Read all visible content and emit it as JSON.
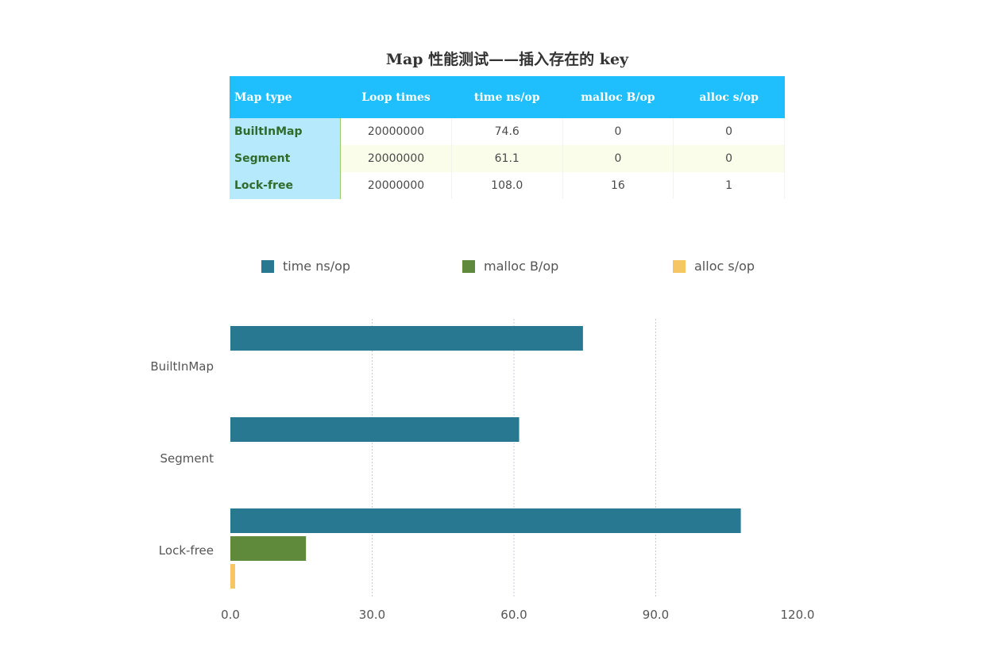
{
  "title": "Map 性能测试——插入存在的 key",
  "table": {
    "headers": [
      "Map type",
      "Loop times",
      "time ns/op",
      "malloc B/op",
      "alloc s/op"
    ],
    "rows": [
      [
        "BuiltInMap",
        "20000000",
        "74.6",
        "0",
        "0"
      ],
      [
        "Segment",
        "20000000",
        "61.1",
        "0",
        "0"
      ],
      [
        "Lock-free",
        "20000000",
        "108.0",
        "16",
        "1"
      ]
    ]
  },
  "chart_data": {
    "type": "bar",
    "orientation": "horizontal",
    "categories": [
      "BuiltInMap",
      "Segment",
      "Lock-free"
    ],
    "series": [
      {
        "name": "time ns/op",
        "values": [
          74.6,
          61.1,
          108.0
        ],
        "color": "#277890"
      },
      {
        "name": "malloc B/op",
        "values": [
          0,
          0,
          16
        ],
        "color": "#608a3b"
      },
      {
        "name": "alloc s/op",
        "values": [
          0,
          0,
          1
        ],
        "color": "#f6c564"
      }
    ],
    "xlim": [
      0,
      120
    ],
    "xticks": [
      "0.0",
      "30.0",
      "60.0",
      "90.0",
      "120.0"
    ],
    "grid": "vertical dotted",
    "legend": "top"
  }
}
